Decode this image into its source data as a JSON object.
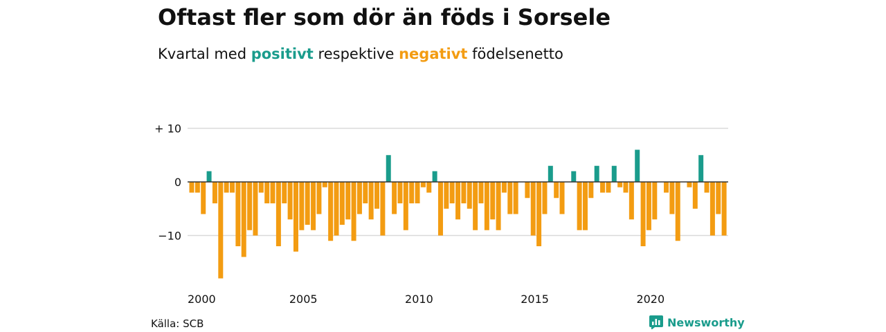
{
  "header": {
    "title": "Oftast fler som dör än föds i Sorsele",
    "subtitle_prefix": "Kvartal med",
    "subtitle_positive": "positivt",
    "subtitle_middle": "respektive",
    "subtitle_negative": "negativt",
    "subtitle_suffix": "födelsenetto"
  },
  "footer": {
    "source": "Källa: SCB",
    "brand": "Newsworthy",
    "brand_icon": "newsworthy-logo-icon"
  },
  "colors": {
    "positive": "#1a9c8c",
    "negative": "#f39c12",
    "grid": "#d9d9d9",
    "zero_line": "#333333"
  },
  "chart_data": {
    "type": "bar",
    "title": "Oftast fler som dör än föds i Sorsele",
    "subtitle": "Kvartal med positivt respektive negativt födelsenetto",
    "xlabel": "",
    "ylabel": "",
    "x_ticks": [
      "2000",
      "2005",
      "2010",
      "2015",
      "2020"
    ],
    "y_ticks": [
      {
        "value": 10,
        "label": "+ 10"
      },
      {
        "value": 0,
        "label": "0"
      },
      {
        "value": -10,
        "label": "−10"
      }
    ],
    "ylim": [
      -18,
      10
    ],
    "grid": true,
    "start_year": 2000,
    "quarters_per_year": 4,
    "values": [
      -2,
      -2,
      -6,
      2,
      -4,
      -18,
      -2,
      -2,
      -12,
      -14,
      -9,
      -10,
      -2,
      -4,
      -4,
      -12,
      -4,
      -7,
      -13,
      -9,
      -8,
      -9,
      -6,
      -1,
      -11,
      -10,
      -8,
      -7,
      -11,
      -6,
      -4,
      -7,
      -5,
      -10,
      5,
      -6,
      -4,
      -9,
      -4,
      -4,
      -1,
      -2,
      2,
      -10,
      -5,
      -4,
      -7,
      -4,
      -5,
      -9,
      -4,
      -9,
      -7,
      -9,
      -2,
      -6,
      -6,
      0,
      -3,
      -10,
      -12,
      -6,
      3,
      -3,
      -6,
      0,
      2,
      -9,
      -9,
      -3,
      3,
      -2,
      -2,
      3,
      -1,
      -2,
      -7,
      6,
      -12,
      -9,
      -7,
      0,
      -2,
      -6,
      -11,
      0,
      -1,
      -5,
      5,
      -2,
      -10,
      -6,
      -10
    ]
  }
}
